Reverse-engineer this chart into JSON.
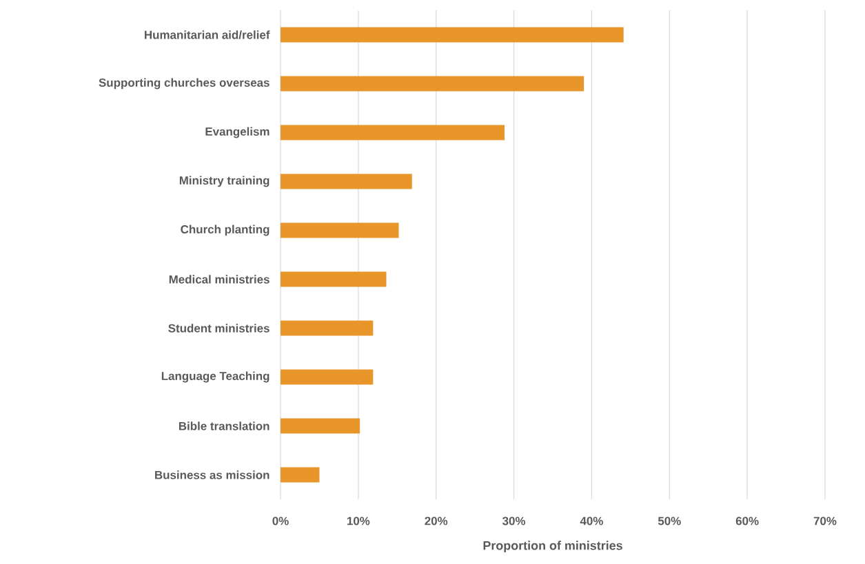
{
  "chart_data": {
    "type": "bar",
    "orientation": "horizontal",
    "xlabel": "Proportion of ministries",
    "categories": [
      "Humanitarian aid/relief",
      "Supporting churches overseas",
      "Evangelism",
      "Ministry training",
      "Church planting",
      "Medical ministries",
      "Student ministries",
      "Language Teaching",
      "Bible translation",
      "Business as mission"
    ],
    "values": [
      44.1,
      39.0,
      28.8,
      16.9,
      15.2,
      13.6,
      11.9,
      11.9,
      10.2,
      5.0
    ],
    "color": "#e8952a",
    "xlim": [
      0,
      70
    ],
    "xticks": [
      {
        "value": 0,
        "label": "0%"
      },
      {
        "value": 10,
        "label": "10%"
      },
      {
        "value": 20,
        "label": "20%"
      },
      {
        "value": 30,
        "label": "30%"
      },
      {
        "value": 40,
        "label": "40%"
      },
      {
        "value": 50,
        "label": "50%"
      },
      {
        "value": 60,
        "label": "60%"
      },
      {
        "value": 70,
        "label": "70%"
      }
    ],
    "grid": "x"
  }
}
